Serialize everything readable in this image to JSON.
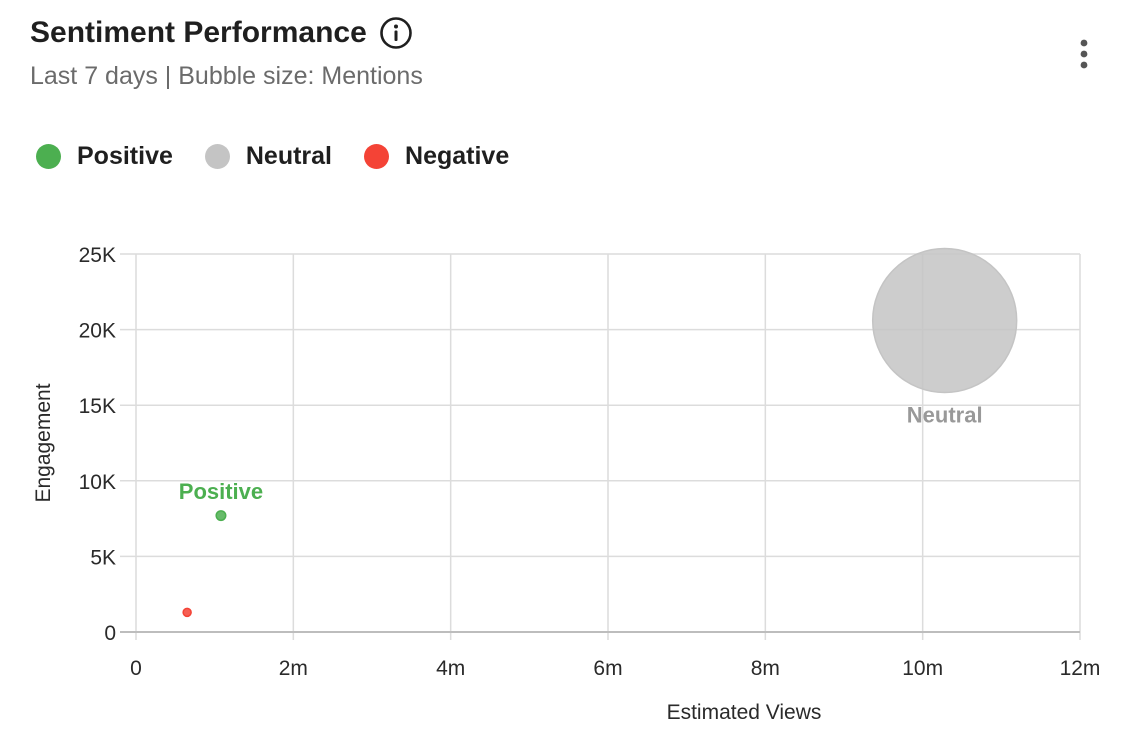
{
  "header": {
    "title": "Sentiment Performance",
    "subtitle": "Last 7 days | Bubble size: Mentions",
    "info_icon": "info-circle-icon",
    "menu_icon": "more-vertical-icon"
  },
  "legend": [
    {
      "label": "Positive",
      "color": "#4caf50"
    },
    {
      "label": "Neutral",
      "color": "#c4c4c4"
    },
    {
      "label": "Negative",
      "color": "#f44336"
    }
  ],
  "chart_data": {
    "type": "scatter",
    "title": "Sentiment Performance",
    "subtitle": "Last 7 days | Bubble size: Mentions",
    "xlabel": "Estimated Views",
    "ylabel": "Engagement",
    "xlim": [
      0,
      12000000
    ],
    "ylim": [
      0,
      25000
    ],
    "x_ticks": [
      0,
      2000000,
      4000000,
      6000000,
      8000000,
      10000000,
      12000000
    ],
    "x_tick_labels": [
      "0",
      "2m",
      "4m",
      "6m",
      "8m",
      "10m",
      "12m"
    ],
    "y_ticks": [
      0,
      5000,
      10000,
      15000,
      20000,
      25000
    ],
    "y_tick_labels": [
      "0",
      "5K",
      "10K",
      "15K",
      "20K",
      "25K"
    ],
    "grid": true,
    "legend_position": "top-left",
    "series": [
      {
        "name": "Positive",
        "color": "#4caf50",
        "x": 1080000,
        "y": 7700,
        "size_relative": 0.066,
        "label": "Positive"
      },
      {
        "name": "Neutral",
        "color": "#c4c4c4",
        "x": 10280000,
        "y": 20600,
        "size_relative": 1.0,
        "label": "Neutral"
      },
      {
        "name": "Negative",
        "color": "#f44336",
        "x": 650000,
        "y": 1300,
        "size_relative": 0.042,
        "label": ""
      }
    ]
  }
}
